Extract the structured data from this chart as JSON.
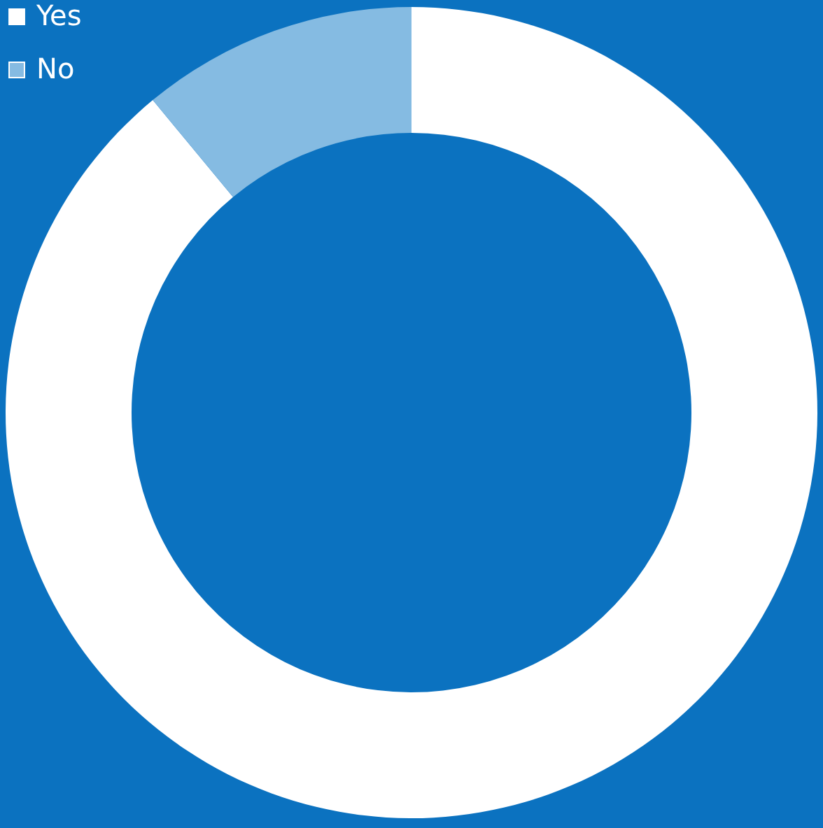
{
  "chart_data": {
    "type": "donut",
    "categories": [
      "Yes",
      "No"
    ],
    "values": [
      89,
      11
    ],
    "colors": [
      "#ffffff",
      "#85bbe2"
    ],
    "legend": "top left"
  }
}
